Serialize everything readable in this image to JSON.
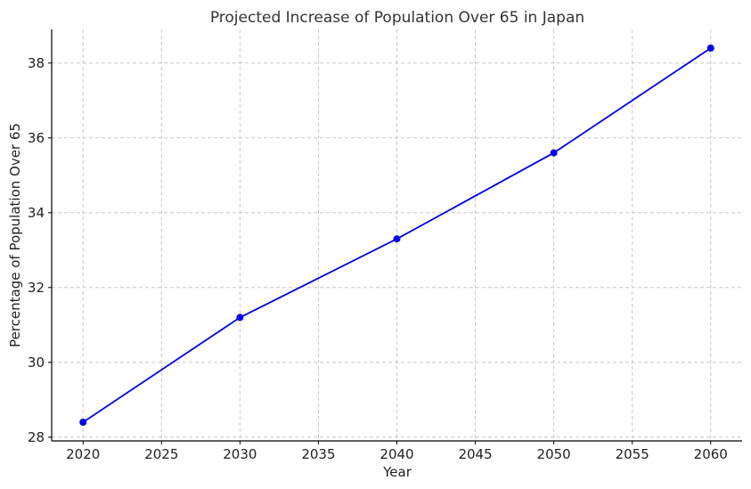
{
  "chart_data": {
    "type": "line",
    "title": "Projected Increase of Population Over 65 in Japan",
    "xlabel": "Year",
    "ylabel": "Percentage of Population Over 65",
    "xlim": [
      2018,
      2062
    ],
    "ylim": [
      27.9,
      38.9
    ],
    "xticks": [
      2020,
      2025,
      2030,
      2035,
      2040,
      2045,
      2050,
      2055,
      2060
    ],
    "yticks": [
      28,
      30,
      32,
      34,
      36,
      38
    ],
    "grid": true,
    "legend": "none",
    "series": [
      {
        "color": "#0000ee",
        "marker": "circle",
        "points": [
          {
            "x": 2020,
            "y": 28.4
          },
          {
            "x": 2030,
            "y": 31.2
          },
          {
            "x": 2040,
            "y": 33.3
          },
          {
            "x": 2050,
            "y": 35.6
          },
          {
            "x": 2060,
            "y": 38.4
          }
        ]
      }
    ]
  }
}
